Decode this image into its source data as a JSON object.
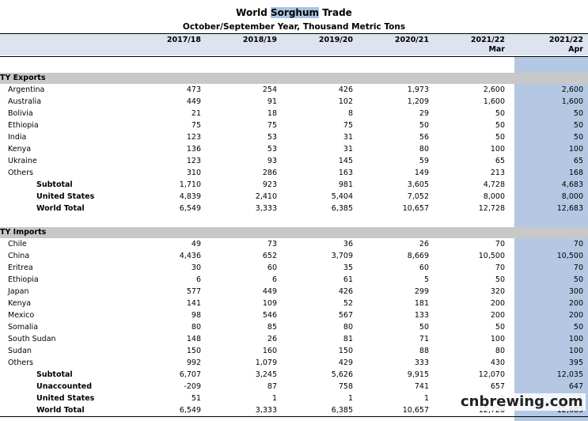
{
  "title": {
    "pre": "World ",
    "highlight": "Sorghum",
    "post": " Trade"
  },
  "subtitle": "October/September Year, Thousand Metric Tons",
  "columns": [
    {
      "year": "2017/18",
      "sub": ""
    },
    {
      "year": "2018/19",
      "sub": ""
    },
    {
      "year": "2019/20",
      "sub": ""
    },
    {
      "year": "2020/21",
      "sub": ""
    },
    {
      "year": "2021/22",
      "sub": "Mar"
    },
    {
      "year": "2021/22",
      "sub": "Apr"
    }
  ],
  "exports": {
    "label": "TY Exports",
    "rows": [
      {
        "name": "Argentina",
        "bold": false,
        "values": [
          "473",
          "254",
          "426",
          "1,973",
          "2,600",
          "2,600"
        ]
      },
      {
        "name": "Australia",
        "bold": false,
        "values": [
          "449",
          "91",
          "102",
          "1,209",
          "1,600",
          "1,600"
        ]
      },
      {
        "name": "Bolivia",
        "bold": false,
        "values": [
          "21",
          "18",
          "8",
          "29",
          "50",
          "50"
        ]
      },
      {
        "name": "Ethiopia",
        "bold": false,
        "values": [
          "75",
          "75",
          "75",
          "50",
          "50",
          "50"
        ]
      },
      {
        "name": "India",
        "bold": false,
        "values": [
          "123",
          "53",
          "31",
          "56",
          "50",
          "50"
        ]
      },
      {
        "name": "Kenya",
        "bold": false,
        "values": [
          "136",
          "53",
          "31",
          "80",
          "100",
          "100"
        ]
      },
      {
        "name": "Ukraine",
        "bold": false,
        "values": [
          "123",
          "93",
          "145",
          "59",
          "65",
          "65"
        ]
      },
      {
        "name": "Others",
        "bold": false,
        "values": [
          "310",
          "286",
          "163",
          "149",
          "213",
          "168"
        ]
      },
      {
        "name": "Subtotal",
        "bold": true,
        "values": [
          "1,710",
          "923",
          "981",
          "3,605",
          "4,728",
          "4,683"
        ]
      },
      {
        "name": "United States",
        "bold": true,
        "values": [
          "4,839",
          "2,410",
          "5,404",
          "7,052",
          "8,000",
          "8,000"
        ]
      },
      {
        "name": "World Total",
        "bold": true,
        "values": [
          "6,549",
          "3,333",
          "6,385",
          "10,657",
          "12,728",
          "12,683"
        ]
      }
    ]
  },
  "imports": {
    "label": "TY Imports",
    "rows": [
      {
        "name": "Chile",
        "bold": false,
        "values": [
          "49",
          "73",
          "36",
          "26",
          "70",
          "70"
        ]
      },
      {
        "name": "China",
        "bold": false,
        "values": [
          "4,436",
          "652",
          "3,709",
          "8,669",
          "10,500",
          "10,500"
        ]
      },
      {
        "name": "Eritrea",
        "bold": false,
        "values": [
          "30",
          "60",
          "35",
          "60",
          "70",
          "70"
        ]
      },
      {
        "name": "Ethiopia",
        "bold": false,
        "values": [
          "6",
          "6",
          "61",
          "5",
          "50",
          "50"
        ]
      },
      {
        "name": "Japan",
        "bold": false,
        "values": [
          "577",
          "449",
          "426",
          "299",
          "320",
          "300"
        ]
      },
      {
        "name": "Kenya",
        "bold": false,
        "values": [
          "141",
          "109",
          "52",
          "181",
          "200",
          "200"
        ]
      },
      {
        "name": "Mexico",
        "bold": false,
        "values": [
          "98",
          "546",
          "567",
          "133",
          "200",
          "200"
        ]
      },
      {
        "name": "Somalia",
        "bold": false,
        "values": [
          "80",
          "85",
          "80",
          "50",
          "50",
          "50"
        ]
      },
      {
        "name": "South Sudan",
        "bold": false,
        "values": [
          "148",
          "26",
          "81",
          "71",
          "100",
          "100"
        ]
      },
      {
        "name": "Sudan",
        "bold": false,
        "values": [
          "150",
          "160",
          "150",
          "88",
          "80",
          "100"
        ]
      },
      {
        "name": "Others",
        "bold": false,
        "values": [
          "992",
          "1,079",
          "429",
          "333",
          "430",
          "395"
        ]
      },
      {
        "name": "Subtotal",
        "bold": true,
        "values": [
          "6,707",
          "3,245",
          "5,626",
          "9,915",
          "12,070",
          "12,035"
        ]
      },
      {
        "name": "Unaccounted",
        "bold": true,
        "values": [
          "-209",
          "87",
          "758",
          "741",
          "657",
          "647"
        ]
      },
      {
        "name": "United States",
        "bold": true,
        "values": [
          "51",
          "1",
          "1",
          "1",
          "1",
          "1"
        ]
      },
      {
        "name": "World Total",
        "bold": true,
        "values": [
          "6,549",
          "3,333",
          "6,385",
          "10,657",
          "12,728",
          "12,683"
        ]
      }
    ]
  },
  "watermark": "cnbrewing.com",
  "colors": {
    "highlight_column": "#b4c8e4",
    "section_bar": "#c8c8c8",
    "title_highlight": "#a9c4e2"
  }
}
